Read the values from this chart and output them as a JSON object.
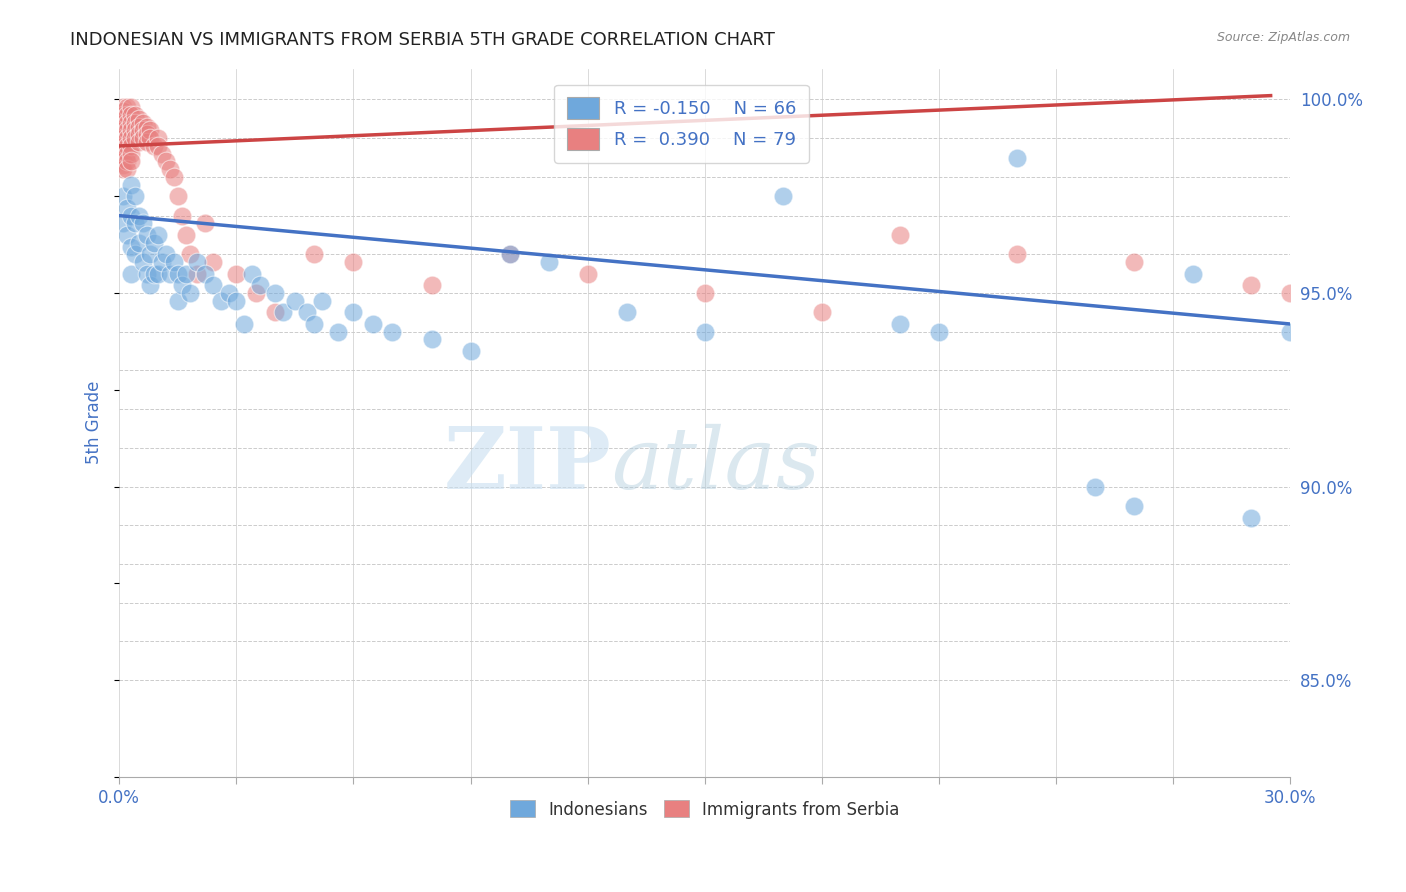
{
  "title": "INDONESIAN VS IMMIGRANTS FROM SERBIA 5TH GRADE CORRELATION CHART",
  "source": "Source: ZipAtlas.com",
  "ylabel": "5th Grade",
  "xmin": 0.0,
  "xmax": 0.3,
  "ymin": 0.825,
  "ymax": 1.008,
  "legend_blue_R": "-0.150",
  "legend_blue_N": "66",
  "legend_pink_R": "0.390",
  "legend_pink_N": "79",
  "indonesians_x": [
    0.001,
    0.001,
    0.002,
    0.002,
    0.003,
    0.003,
    0.003,
    0.003,
    0.004,
    0.004,
    0.004,
    0.005,
    0.005,
    0.006,
    0.006,
    0.007,
    0.007,
    0.008,
    0.008,
    0.009,
    0.009,
    0.01,
    0.01,
    0.011,
    0.012,
    0.013,
    0.014,
    0.015,
    0.015,
    0.016,
    0.017,
    0.018,
    0.02,
    0.022,
    0.024,
    0.026,
    0.028,
    0.03,
    0.032,
    0.034,
    0.036,
    0.04,
    0.042,
    0.045,
    0.048,
    0.05,
    0.052,
    0.056,
    0.06,
    0.065,
    0.07,
    0.08,
    0.09,
    0.1,
    0.11,
    0.13,
    0.15,
    0.17,
    0.2,
    0.21,
    0.23,
    0.25,
    0.26,
    0.275,
    0.29,
    0.3
  ],
  "indonesians_y": [
    0.975,
    0.968,
    0.972,
    0.965,
    0.978,
    0.97,
    0.962,
    0.955,
    0.975,
    0.968,
    0.96,
    0.97,
    0.963,
    0.968,
    0.958,
    0.965,
    0.955,
    0.96,
    0.952,
    0.963,
    0.955,
    0.965,
    0.955,
    0.958,
    0.96,
    0.955,
    0.958,
    0.955,
    0.948,
    0.952,
    0.955,
    0.95,
    0.958,
    0.955,
    0.952,
    0.948,
    0.95,
    0.948,
    0.942,
    0.955,
    0.952,
    0.95,
    0.945,
    0.948,
    0.945,
    0.942,
    0.948,
    0.94,
    0.945,
    0.942,
    0.94,
    0.938,
    0.935,
    0.96,
    0.958,
    0.945,
    0.94,
    0.975,
    0.942,
    0.94,
    0.985,
    0.9,
    0.895,
    0.955,
    0.892,
    0.94
  ],
  "serbia_x": [
    0.001,
    0.001,
    0.001,
    0.001,
    0.001,
    0.001,
    0.001,
    0.001,
    0.001,
    0.001,
    0.001,
    0.001,
    0.001,
    0.001,
    0.001,
    0.001,
    0.001,
    0.002,
    0.002,
    0.002,
    0.002,
    0.002,
    0.002,
    0.002,
    0.002,
    0.002,
    0.003,
    0.003,
    0.003,
    0.003,
    0.003,
    0.003,
    0.003,
    0.003,
    0.004,
    0.004,
    0.004,
    0.004,
    0.005,
    0.005,
    0.005,
    0.005,
    0.006,
    0.006,
    0.006,
    0.007,
    0.007,
    0.007,
    0.008,
    0.008,
    0.009,
    0.01,
    0.01,
    0.011,
    0.012,
    0.013,
    0.014,
    0.015,
    0.016,
    0.017,
    0.018,
    0.02,
    0.022,
    0.024,
    0.03,
    0.035,
    0.04,
    0.05,
    0.06,
    0.08,
    0.1,
    0.12,
    0.15,
    0.18,
    0.2,
    0.23,
    0.26,
    0.29,
    0.3
  ],
  "serbia_y": [
    0.998,
    0.997,
    0.996,
    0.995,
    0.994,
    0.993,
    0.992,
    0.991,
    0.99,
    0.989,
    0.988,
    0.987,
    0.986,
    0.985,
    0.984,
    0.983,
    0.982,
    0.998,
    0.996,
    0.994,
    0.992,
    0.99,
    0.988,
    0.986,
    0.984,
    0.982,
    0.998,
    0.996,
    0.994,
    0.992,
    0.99,
    0.988,
    0.986,
    0.984,
    0.996,
    0.994,
    0.992,
    0.99,
    0.995,
    0.993,
    0.991,
    0.989,
    0.994,
    0.992,
    0.99,
    0.993,
    0.991,
    0.989,
    0.992,
    0.99,
    0.988,
    0.99,
    0.988,
    0.986,
    0.984,
    0.982,
    0.98,
    0.975,
    0.97,
    0.965,
    0.96,
    0.955,
    0.968,
    0.958,
    0.955,
    0.95,
    0.945,
    0.96,
    0.958,
    0.952,
    0.96,
    0.955,
    0.95,
    0.945,
    0.965,
    0.96,
    0.958,
    0.952,
    0.95
  ],
  "blue_line_x": [
    0.0,
    0.3
  ],
  "blue_line_y": [
    0.97,
    0.942
  ],
  "pink_line_x": [
    0.0,
    0.295
  ],
  "pink_line_y": [
    0.988,
    1.001
  ],
  "blue_color": "#6fa8dc",
  "pink_color": "#e88080",
  "blue_line_color": "#4472c4",
  "pink_line_color": "#cc4444",
  "axis_label_color": "#4472c4",
  "grid_color": "#cccccc",
  "source_color": "#888888",
  "title_color": "#222222"
}
